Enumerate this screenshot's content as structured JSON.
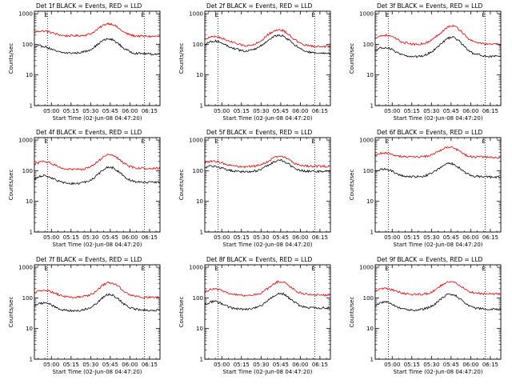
{
  "figure": {
    "background": "#ffffff",
    "events_color": "#000000",
    "lld_color": "#dd0000"
  },
  "shared": {
    "ylabel": "Counts/sec",
    "xlabel": "Start Time (02-Jun-08 04:47:20)",
    "title_suffix": "BLACK = Events, RED = LLD",
    "ytick_values": [
      1,
      10,
      100,
      1000
    ],
    "ytick_labels": [
      "1",
      "10",
      "100",
      "1000"
    ],
    "xtick_minutes": [
      13,
      28,
      43,
      58,
      73,
      88
    ],
    "xtick_labels": [
      "05:00",
      "05:15",
      "05:30",
      "05:45",
      "06:00",
      "06:15"
    ],
    "x_range_minutes": [
      0,
      96
    ],
    "y_range": [
      1,
      1200
    ],
    "marker_minutes": [
      10,
      84
    ],
    "marker_label": "E"
  },
  "chart_data": [
    {
      "type": "line",
      "title": "Det 1f BLACK = Events, RED = LLD",
      "det": "Det 1f",
      "xlabel": "Start Time (02-Jun-08 04:47:20)",
      "ylabel": "Counts/sec",
      "x": [
        0,
        4,
        8,
        12,
        16,
        20,
        24,
        28,
        32,
        36,
        40,
        44,
        48,
        52,
        56,
        60,
        64,
        68,
        72,
        76,
        80,
        84,
        88,
        92,
        96
      ],
      "series": [
        {
          "name": "LLD",
          "values": [
            250,
            270,
            270,
            250,
            220,
            200,
            190,
            190,
            190,
            195,
            205,
            230,
            300,
            400,
            480,
            450,
            340,
            250,
            210,
            190,
            185,
            185,
            180,
            180,
            180
          ]
        },
        {
          "name": "Events",
          "values": [
            75,
            90,
            85,
            72,
            60,
            55,
            52,
            52,
            52,
            55,
            60,
            72,
            95,
            130,
            150,
            140,
            105,
            75,
            60,
            52,
            50,
            50,
            48,
            48,
            48
          ]
        }
      ]
    },
    {
      "type": "line",
      "title": "Det 2f BLACK = Events, RED = LLD",
      "det": "Det 2f",
      "xlabel": "Start Time (02-Jun-08 04:47:20)",
      "ylabel": "Counts/sec",
      "x": [
        0,
        4,
        8,
        12,
        16,
        20,
        24,
        28,
        32,
        36,
        40,
        44,
        48,
        52,
        56,
        60,
        64,
        68,
        72,
        76,
        80,
        84,
        88,
        92,
        96
      ],
      "series": [
        {
          "name": "LLD",
          "values": [
            150,
            170,
            180,
            165,
            140,
            120,
            105,
            95,
            90,
            95,
            110,
            140,
            200,
            260,
            300,
            280,
            210,
            150,
            110,
            95,
            90,
            85,
            85,
            85,
            85
          ]
        },
        {
          "name": "Events",
          "values": [
            100,
            120,
            130,
            115,
            95,
            80,
            70,
            62,
            60,
            65,
            75,
            95,
            130,
            170,
            200,
            185,
            140,
            100,
            75,
            62,
            55,
            52,
            50,
            50,
            50
          ]
        }
      ]
    },
    {
      "type": "line",
      "title": "Det 3f BLACK = Events, RED = LLD",
      "det": "Det 3f",
      "xlabel": "Start Time (02-Jun-08 04:47:20)",
      "ylabel": "Counts/sec",
      "x": [
        0,
        4,
        8,
        12,
        16,
        20,
        24,
        28,
        32,
        36,
        40,
        44,
        48,
        52,
        56,
        60,
        64,
        68,
        72,
        76,
        80,
        84,
        88,
        92,
        96
      ],
      "series": [
        {
          "name": "LLD",
          "values": [
            160,
            190,
            200,
            180,
            150,
            120,
            110,
            100,
            100,
            105,
            115,
            145,
            200,
            280,
            380,
            400,
            310,
            210,
            140,
            120,
            110,
            105,
            100,
            100,
            100
          ]
        },
        {
          "name": "Events",
          "values": [
            60,
            75,
            80,
            70,
            55,
            45,
            42,
            40,
            40,
            42,
            48,
            60,
            85,
            120,
            160,
            170,
            130,
            85,
            58,
            48,
            45,
            42,
            40,
            40,
            40
          ]
        }
      ]
    },
    {
      "type": "line",
      "title": "Det 4f BLACK = Events, RED = LLD",
      "det": "Det 4f",
      "xlabel": "Start Time (02-Jun-08 04:47:20)",
      "ylabel": "Counts/sec",
      "x": [
        0,
        4,
        8,
        12,
        16,
        20,
        24,
        28,
        32,
        36,
        40,
        44,
        48,
        52,
        56,
        60,
        64,
        68,
        72,
        76,
        80,
        84,
        88,
        92,
        96
      ],
      "series": [
        {
          "name": "LLD",
          "values": [
            160,
            190,
            200,
            180,
            150,
            125,
            115,
            110,
            110,
            112,
            120,
            140,
            190,
            260,
            330,
            320,
            250,
            180,
            140,
            125,
            120,
            120,
            120,
            120,
            120
          ]
        },
        {
          "name": "Events",
          "values": [
            55,
            65,
            70,
            62,
            50,
            43,
            40,
            38,
            38,
            40,
            44,
            52,
            70,
            100,
            130,
            125,
            95,
            68,
            52,
            45,
            42,
            42,
            42,
            42,
            42
          ]
        }
      ]
    },
    {
      "type": "line",
      "title": "Det 5f BLACK = Events, RED = LLD",
      "det": "Det 5f",
      "xlabel": "Start Time (02-Jun-08 04:47:20)",
      "ylabel": "Counts/sec",
      "x": [
        0,
        4,
        8,
        12,
        16,
        20,
        24,
        28,
        32,
        36,
        40,
        44,
        48,
        52,
        56,
        60,
        64,
        68,
        72,
        76,
        80,
        84,
        88,
        92,
        96
      ],
      "series": [
        {
          "name": "LLD",
          "values": [
            190,
            205,
            200,
            185,
            165,
            150,
            140,
            135,
            135,
            138,
            145,
            165,
            200,
            250,
            300,
            285,
            230,
            180,
            155,
            145,
            140,
            140,
            140,
            140,
            140
          ]
        },
        {
          "name": "Events",
          "values": [
            125,
            140,
            135,
            125,
            110,
            100,
            95,
            92,
            92,
            95,
            100,
            115,
            145,
            185,
            225,
            210,
            165,
            125,
            105,
            98,
            95,
            95,
            95,
            95,
            95
          ]
        }
      ]
    },
    {
      "type": "line",
      "title": "Det 6f BLACK = Events, RED = LLD",
      "det": "Det 6f",
      "xlabel": "Start Time (02-Jun-08 04:47:20)",
      "ylabel": "Counts/sec",
      "x": [
        0,
        4,
        8,
        12,
        16,
        20,
        24,
        28,
        32,
        36,
        40,
        44,
        48,
        52,
        56,
        60,
        64,
        68,
        72,
        76,
        80,
        84,
        88,
        92,
        96
      ],
      "series": [
        {
          "name": "LLD",
          "values": [
            330,
            370,
            380,
            350,
            310,
            290,
            280,
            280,
            280,
            285,
            300,
            340,
            420,
            520,
            590,
            560,
            440,
            340,
            290,
            280,
            280,
            275,
            270,
            270,
            270
          ]
        },
        {
          "name": "Events",
          "values": [
            90,
            110,
            115,
            100,
            80,
            70,
            65,
            64,
            64,
            66,
            72,
            85,
            110,
            145,
            175,
            165,
            125,
            90,
            72,
            66,
            65,
            64,
            62,
            62,
            62
          ]
        }
      ]
    },
    {
      "type": "line",
      "title": "Det 7f BLACK = Events, RED = LLD",
      "det": "Det 7f",
      "xlabel": "Start Time (02-Jun-08 04:47:20)",
      "ylabel": "Counts/sec",
      "x": [
        0,
        4,
        8,
        12,
        16,
        20,
        24,
        28,
        32,
        36,
        40,
        44,
        48,
        52,
        56,
        60,
        64,
        68,
        72,
        76,
        80,
        84,
        88,
        92,
        96
      ],
      "series": [
        {
          "name": "LLD",
          "values": [
            150,
            175,
            185,
            165,
            140,
            120,
            110,
            105,
            105,
            108,
            115,
            135,
            180,
            250,
            320,
            310,
            240,
            170,
            130,
            115,
            110,
            105,
            105,
            105,
            105
          ]
        },
        {
          "name": "Events",
          "values": [
            55,
            65,
            70,
            62,
            50,
            42,
            40,
            38,
            38,
            40,
            44,
            52,
            70,
            100,
            130,
            125,
            92,
            65,
            50,
            44,
            42,
            40,
            40,
            40,
            40
          ]
        }
      ]
    },
    {
      "type": "line",
      "title": "Det 8f BLACK = Events, RED = LLD",
      "det": "Det 8f",
      "xlabel": "Start Time (02-Jun-08 04:47:20)",
      "ylabel": "Counts/sec",
      "x": [
        0,
        4,
        8,
        12,
        16,
        20,
        24,
        28,
        32,
        36,
        40,
        44,
        48,
        52,
        56,
        60,
        64,
        68,
        72,
        76,
        80,
        84,
        88,
        92,
        96
      ],
      "series": [
        {
          "name": "LLD",
          "values": [
            160,
            185,
            195,
            180,
            155,
            135,
            125,
            120,
            120,
            122,
            130,
            150,
            200,
            270,
            340,
            330,
            260,
            190,
            150,
            135,
            130,
            125,
            125,
            125,
            125
          ]
        },
        {
          "name": "Events",
          "values": [
            60,
            72,
            78,
            68,
            55,
            48,
            45,
            43,
            43,
            45,
            50,
            60,
            80,
            110,
            140,
            135,
            102,
            75,
            58,
            50,
            48,
            47,
            47,
            47,
            47
          ]
        }
      ]
    },
    {
      "type": "line",
      "title": "Det 9f BLACK = Events, RED = LLD",
      "det": "Det 9f",
      "xlabel": "Start Time (02-Jun-08 04:47:20)",
      "ylabel": "Counts/sec",
      "x": [
        0,
        4,
        8,
        12,
        16,
        20,
        24,
        28,
        32,
        36,
        40,
        44,
        48,
        52,
        56,
        60,
        64,
        68,
        72,
        76,
        80,
        84,
        88,
        92,
        96
      ],
      "series": [
        {
          "name": "LLD",
          "values": [
            170,
            195,
            205,
            190,
            165,
            145,
            135,
            130,
            130,
            132,
            140,
            160,
            210,
            280,
            350,
            340,
            270,
            200,
            160,
            145,
            140,
            135,
            135,
            135,
            135
          ]
        },
        {
          "name": "Events",
          "values": [
            55,
            68,
            75,
            65,
            52,
            45,
            42,
            40,
            40,
            42,
            47,
            56,
            75,
            105,
            135,
            130,
            98,
            70,
            54,
            47,
            45,
            43,
            43,
            43,
            43
          ]
        }
      ]
    }
  ]
}
